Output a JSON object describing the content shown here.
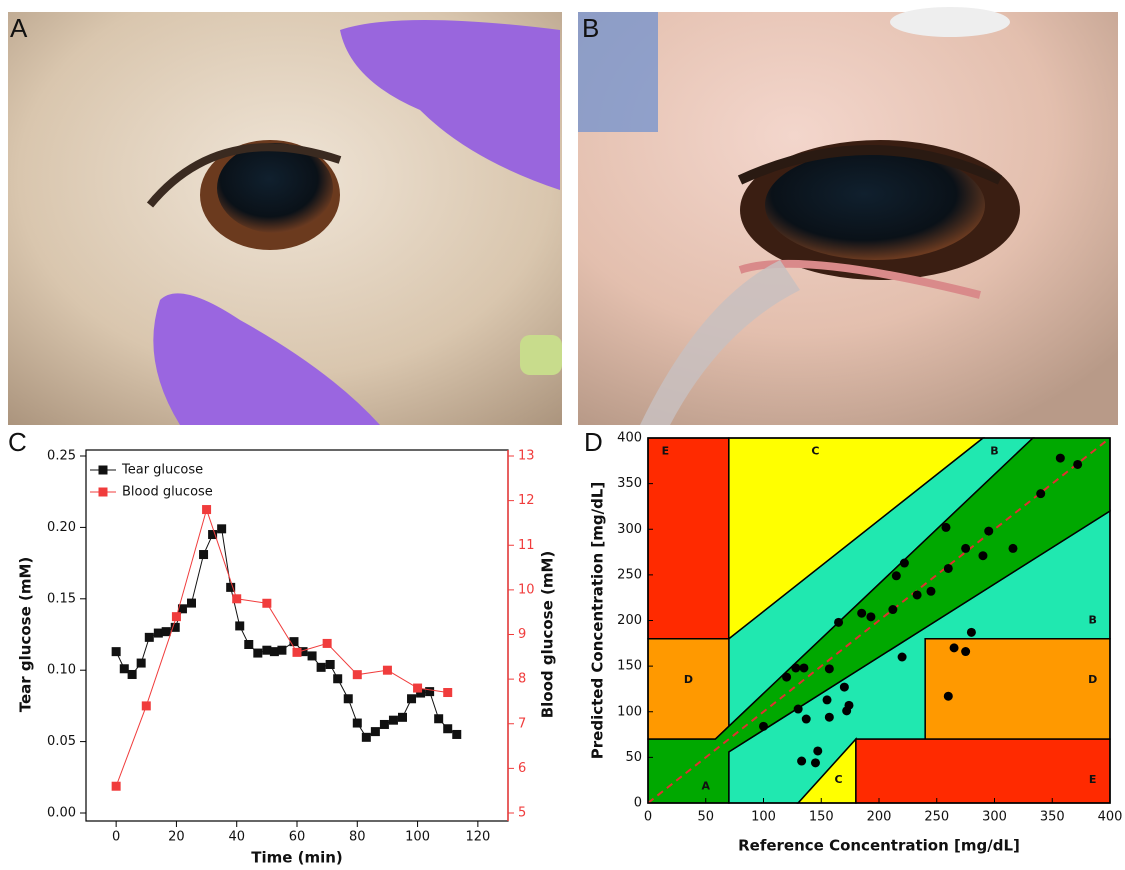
{
  "panels": {
    "a": {
      "label": "A"
    },
    "b": {
      "label": "B"
    }
  },
  "chart_data": [
    {
      "type": "line",
      "panel_label": "C",
      "xlabel": "Time (min)",
      "ylabel": "Tear glucose (mM)",
      "y2label": "Blood glucose (mM)",
      "xlim": [
        -10,
        130
      ],
      "xticks": [
        0,
        20,
        40,
        60,
        80,
        100,
        120
      ],
      "ylim": [
        0,
        0.25
      ],
      "yticks": [
        {
          "value": 0,
          "label": "0.00"
        },
        0.05,
        {
          "value": 0.1,
          "label": "0.10"
        },
        0.15,
        {
          "value": 0.2,
          "label": "0.20"
        },
        0.25
      ],
      "y2lim": [
        5,
        13
      ],
      "y2ticks": [
        5,
        6,
        7,
        8,
        9,
        10,
        11,
        12,
        13
      ],
      "y2color": "#f03c3c",
      "legend": "upper left",
      "series": [
        {
          "name": "Tear glucose",
          "color": "#111111",
          "x": [
            0,
            2.7,
            5.3,
            8.3,
            11,
            14,
            16.6,
            19.6,
            22,
            25,
            29,
            32,
            35,
            38,
            41,
            44,
            47,
            50,
            52.5,
            55,
            59,
            62,
            65,
            68,
            71,
            73.5,
            77,
            80,
            83,
            86,
            89,
            92,
            95,
            98,
            101,
            104,
            107,
            110,
            113
          ],
          "values": [
            0.113,
            0.101,
            0.097,
            0.105,
            0.123,
            0.126,
            0.127,
            0.13,
            0.143,
            0.147,
            0.181,
            0.195,
            0.199,
            0.158,
            0.131,
            0.118,
            0.112,
            0.114,
            0.113,
            0.114,
            0.12,
            0.113,
            0.11,
            0.102,
            0.104,
            0.094,
            0.08,
            0.063,
            0.053,
            0.057,
            0.062,
            0.065,
            0.067,
            0.08,
            0.084,
            0.085,
            0.066,
            0.059,
            0.055
          ]
        },
        {
          "name": "Blood glucose",
          "color": "#f03c3c",
          "axis": "y2",
          "x": [
            0,
            10,
            20,
            30,
            40,
            50,
            60,
            70,
            80,
            90,
            100,
            110
          ],
          "values": [
            5.6,
            7.4,
            9.4,
            11.8,
            9.8,
            9.7,
            8.6,
            8.8,
            8.1,
            8.2,
            7.8,
            7.7
          ]
        }
      ]
    },
    {
      "type": "scatter",
      "panel_label": "D",
      "xlabel": "Reference Concentration [mg/dL]",
      "ylabel": "Predicted Concentration [mg/dL]",
      "xlim": [
        0,
        400
      ],
      "xticks": [
        0,
        50,
        100,
        150,
        200,
        250,
        300,
        350,
        400
      ],
      "ylim": [
        0,
        400
      ],
      "yticks": [
        0,
        50,
        100,
        150,
        200,
        250,
        300,
        350,
        400
      ],
      "color": "#000000",
      "identity_line_color": "#e03030",
      "zones": [
        {
          "label": "B",
          "color": "#20e8b0",
          "points": [
            [
              70,
              84
            ],
            [
              70,
              180
            ],
            [
              290,
              400
            ],
            [
              333.3,
              400
            ]
          ]
        },
        {
          "label": "B",
          "color": "#20e8b0",
          "points": [
            [
              70,
              0
            ],
            [
              70,
              56
            ],
            [
              400,
              320
            ],
            [
              400,
              180
            ],
            [
              240,
              180
            ],
            [
              240,
              70
            ],
            [
              180,
              70
            ],
            [
              130,
              0
            ]
          ]
        },
        {
          "label": "E",
          "color": "#ff2a00",
          "points": [
            [
              0,
              180
            ],
            [
              0,
              400
            ],
            [
              70,
              400
            ],
            [
              70,
              180
            ]
          ]
        },
        {
          "label": "C",
          "color": "#ffff00",
          "points": [
            [
              70,
              180
            ],
            [
              70,
              400
            ],
            [
              290,
              400
            ]
          ]
        },
        {
          "label": "D",
          "color": "#ff9900",
          "points": [
            [
              0,
              70
            ],
            [
              58.3,
              70
            ],
            [
              70,
              84
            ],
            [
              70,
              180
            ],
            [
              0,
              180
            ]
          ]
        },
        {
          "label": "D",
          "color": "#ff9900",
          "points": [
            [
              240,
              70
            ],
            [
              240,
              180
            ],
            [
              400,
              180
            ],
            [
              400,
              70
            ]
          ]
        },
        {
          "label": "A",
          "color": "#00a800",
          "points": [
            [
              0,
              0
            ],
            [
              70,
              0
            ],
            [
              70,
              56
            ],
            [
              400,
              320
            ],
            [
              400,
              400
            ],
            [
              333.3,
              400
            ],
            [
              58.3,
              70
            ],
            [
              0,
              70
            ]
          ]
        },
        {
          "label": "C",
          "color": "#ffff00",
          "points": [
            [
              130,
              0
            ],
            [
              180,
              70
            ],
            [
              180,
              0
            ]
          ]
        },
        {
          "label": "E",
          "color": "#ff2a00",
          "points": [
            [
              180,
              0
            ],
            [
              180,
              70
            ],
            [
              400,
              70
            ],
            [
              400,
              0
            ]
          ]
        }
      ],
      "x": [
        100,
        120,
        128,
        135,
        130,
        137,
        133,
        145,
        147,
        155,
        157,
        157,
        165,
        170,
        172,
        174,
        185,
        193,
        212,
        215,
        220,
        222,
        233,
        245,
        258,
        260,
        260,
        265,
        275,
        275,
        280,
        290,
        295,
        316,
        340,
        357,
        372
      ],
      "values": [
        84,
        138,
        148,
        148,
        103,
        92,
        46,
        44,
        57,
        113,
        94,
        147,
        198,
        127,
        101,
        107,
        208,
        204,
        212,
        249,
        160,
        263,
        228,
        232,
        302,
        117,
        257,
        170,
        166,
        279,
        187,
        271,
        298,
        279,
        339,
        378,
        371
      ]
    }
  ]
}
